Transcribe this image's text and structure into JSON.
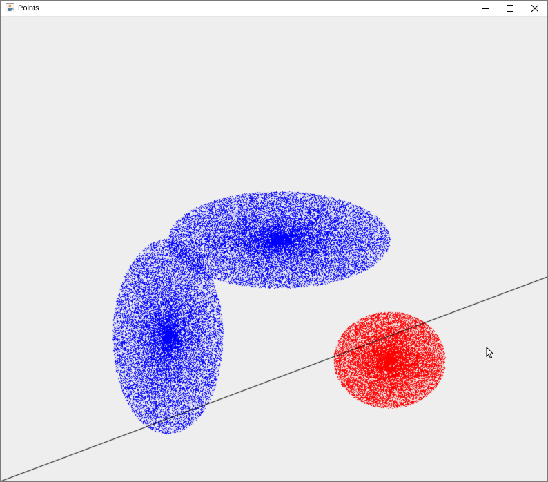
{
  "window": {
    "title": "Points",
    "app_icon": "java-cup-icon",
    "controls": [
      "minimize-icon",
      "maximize-icon",
      "close-icon"
    ]
  },
  "colors": {
    "canvas_background": "#eeeeee",
    "cluster_blue": "#0000ff",
    "cluster_red": "#ff0000",
    "separator_line": "#000000"
  },
  "scene": {
    "clusters": [
      {
        "name": "blue-cluster-horizontal",
        "color": "#0000ff"
      },
      {
        "name": "blue-cluster-vertical",
        "color": "#0000ff"
      },
      {
        "name": "red-cluster",
        "color": "#ff0000"
      }
    ],
    "separator": {
      "name": "decision-line",
      "color": "#000000"
    },
    "cursor": "mouse-pointer-icon"
  }
}
